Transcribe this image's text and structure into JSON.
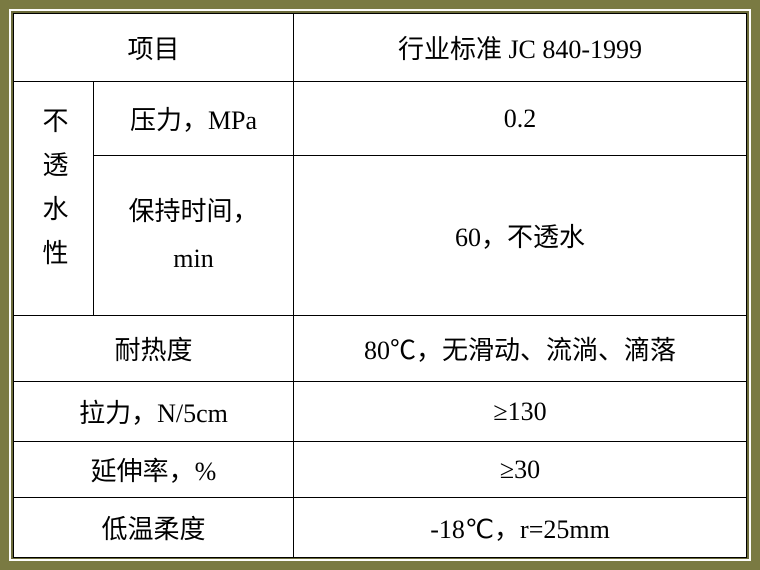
{
  "table": {
    "border_color": "#000000",
    "frame_color": "#7a7a42",
    "inner_frame_color": "#6b6b3a",
    "background": "#ffffff",
    "font_size": 26,
    "header": {
      "col1": "项目",
      "col2": "行业标准 JC 840-1999"
    },
    "group1": {
      "label": "不透水性",
      "row1": {
        "prop": "压力，MPa",
        "val": "0.2"
      },
      "row2": {
        "prop_line1": "保持时间，",
        "prop_line2": "min",
        "val": "60，不透水"
      }
    },
    "rows": {
      "heat": {
        "prop": "耐热度",
        "val": "80℃，无滑动、流淌、滴落"
      },
      "tensile": {
        "prop": "拉力，N/5cm",
        "val": "≥130"
      },
      "elongation": {
        "prop": "延伸率，%",
        "val": "≥30"
      },
      "cold": {
        "prop": "低温柔度",
        "val": "-18℃，r=25mm"
      }
    }
  }
}
